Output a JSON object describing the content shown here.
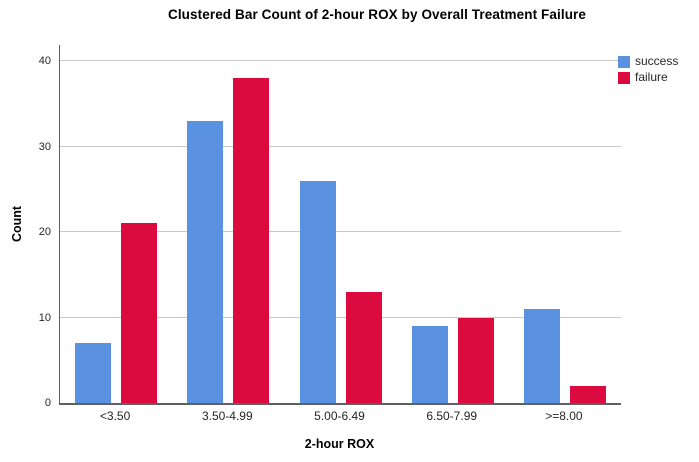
{
  "chart_data": {
    "type": "bar",
    "title": "Clustered Bar Count of 2-hour ROX by Overall Treatment Failure",
    "xlabel": "2-hour ROX",
    "ylabel": "Count",
    "categories": [
      "<3.50",
      "3.50-4.99",
      "5.00-6.49",
      "6.50-7.99",
      ">=8.00"
    ],
    "series": [
      {
        "name": "success",
        "color": "#5A91E0",
        "values": [
          7,
          33,
          26,
          9,
          11
        ]
      },
      {
        "name": "failure",
        "color": "#DB0A3F",
        "values": [
          21,
          38,
          13,
          10,
          2
        ]
      }
    ],
    "ylim": [
      0,
      42
    ],
    "yticks": [
      0,
      10,
      20,
      30,
      40
    ],
    "grid": "horizontal-only",
    "legend_position": "top-right-outside",
    "colors": {
      "axis_line": "#606060",
      "gridline": "#c9c9c9",
      "tick_text": "#262626",
      "title_text": "#000000",
      "background": "#ffffff"
    }
  }
}
